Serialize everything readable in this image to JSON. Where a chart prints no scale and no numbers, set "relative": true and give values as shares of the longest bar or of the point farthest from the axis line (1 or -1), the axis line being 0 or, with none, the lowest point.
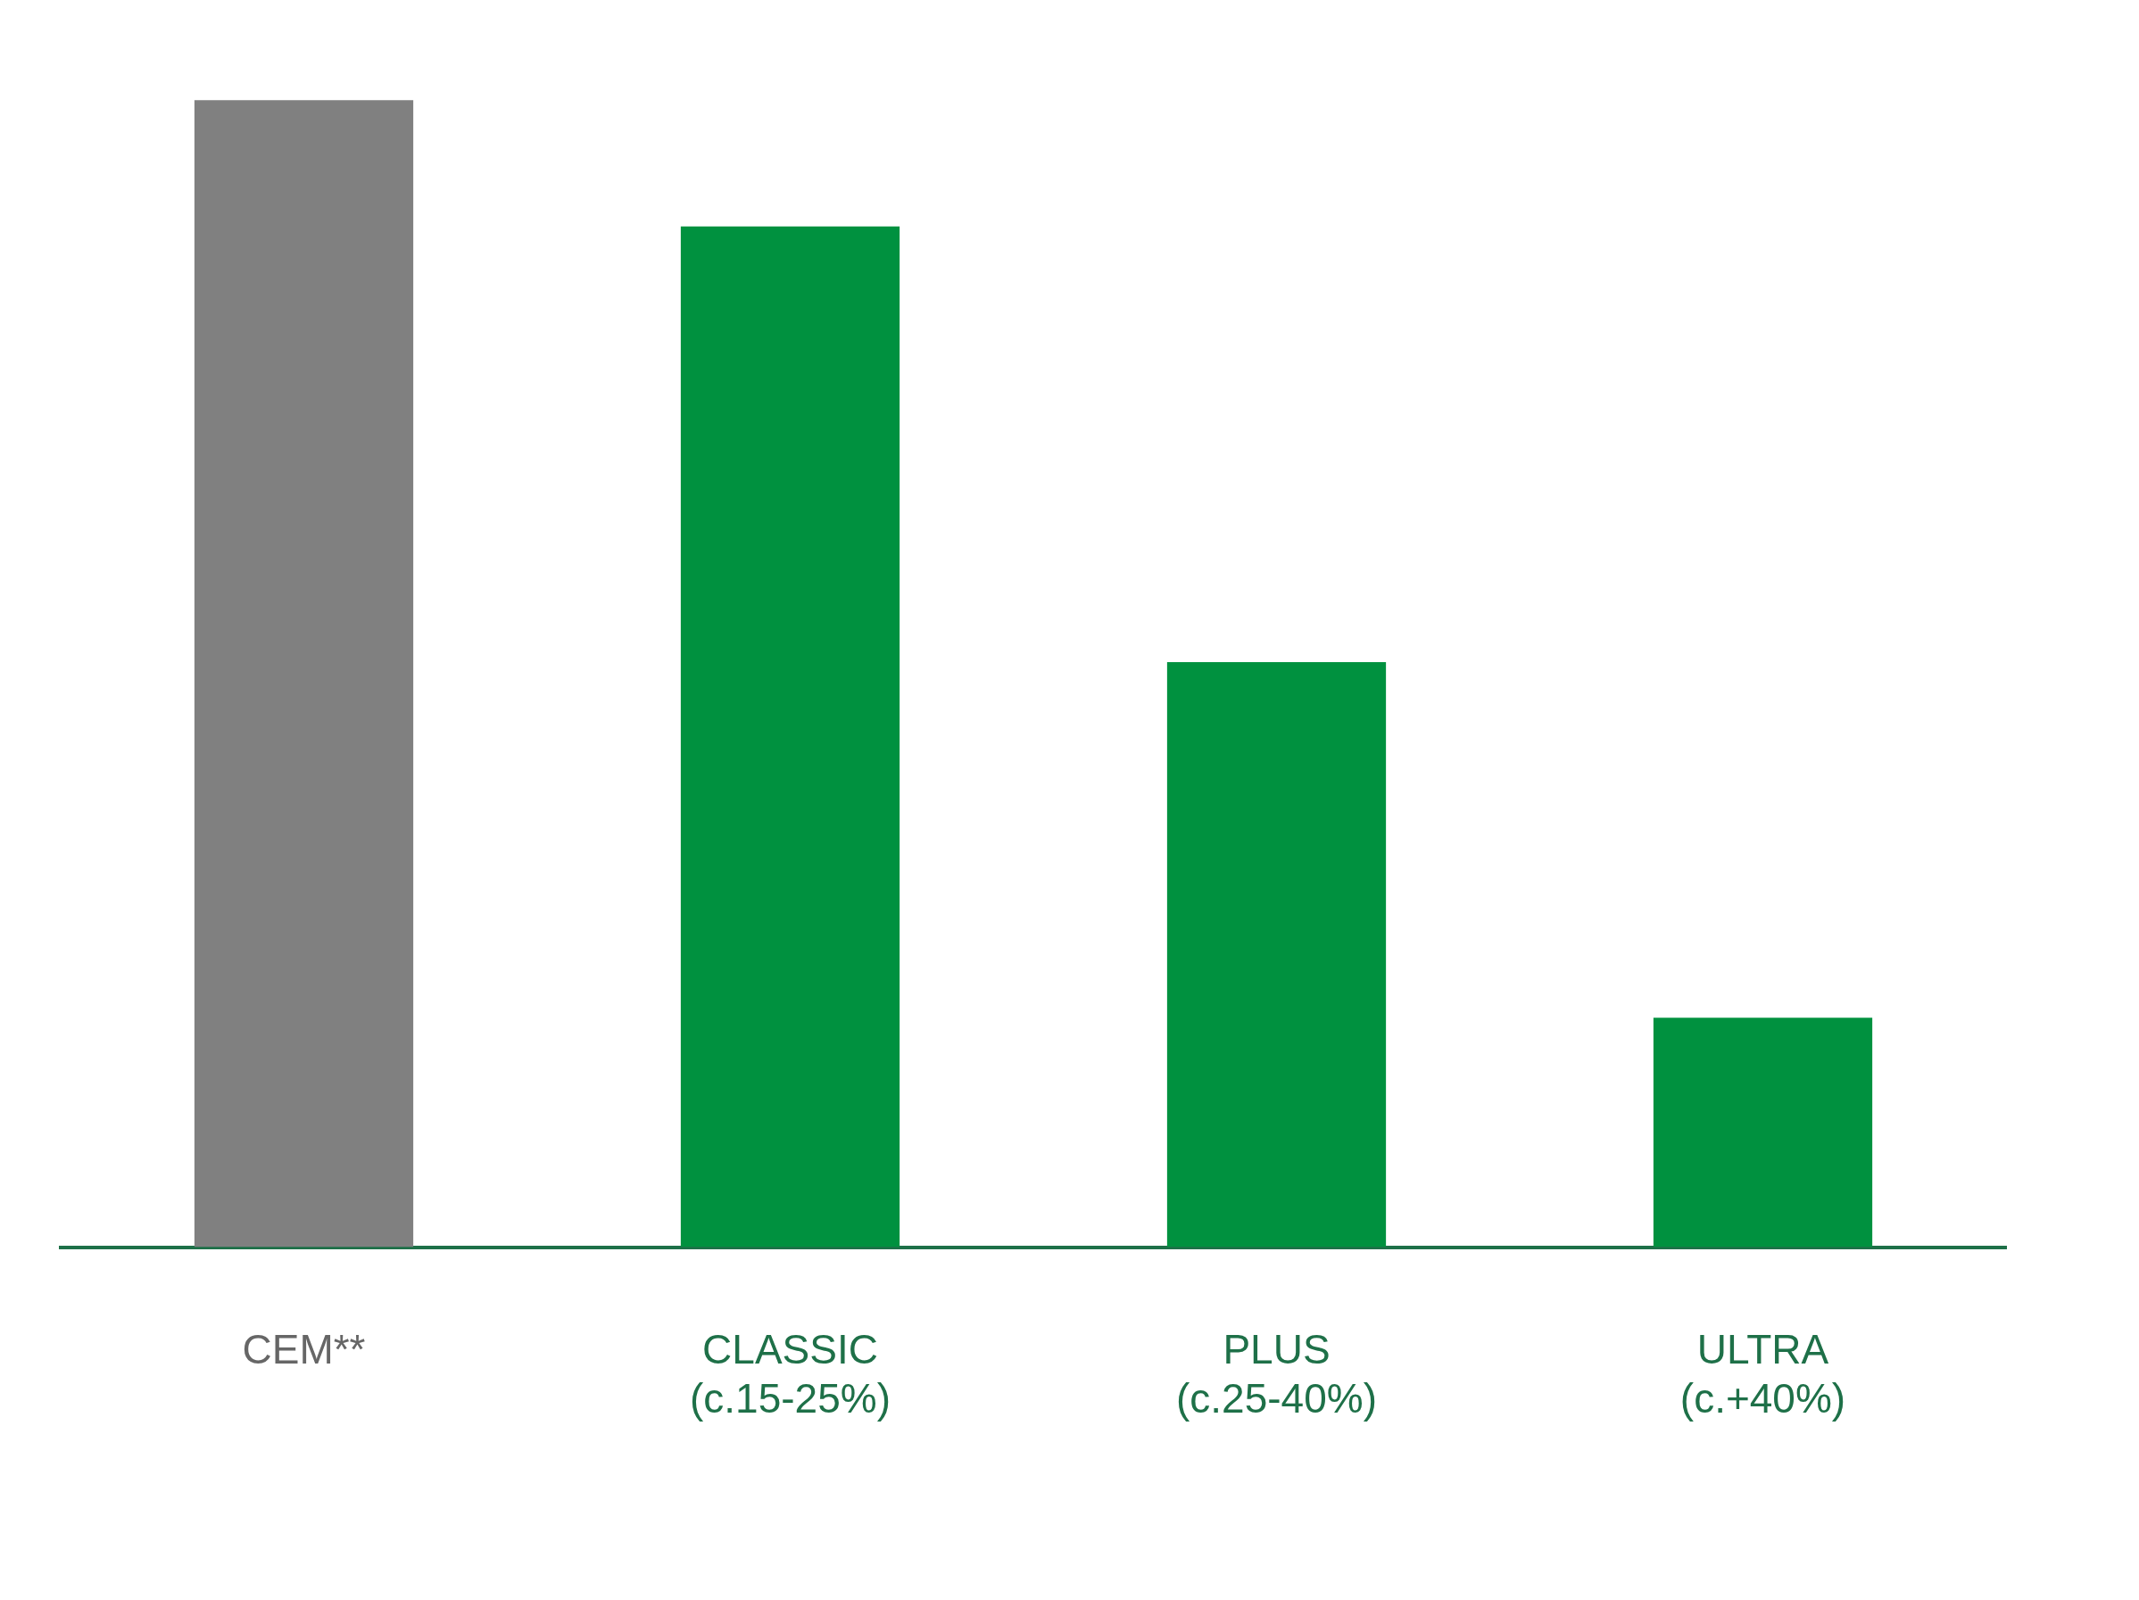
{
  "chart_data": {
    "type": "bar",
    "relative": true,
    "categories": [
      "CEM**",
      "CLASSIC\n(c.15-25%)",
      "PLUS\n(c.25-40%)",
      "ULTRA\n(c.+40%)"
    ],
    "values": [
      1,
      0.89,
      0.51,
      0.2
    ],
    "colors": [
      "#808080",
      "#00913f",
      "#00913f",
      "#00913f"
    ],
    "grid": false,
    "legend": false
  }
}
